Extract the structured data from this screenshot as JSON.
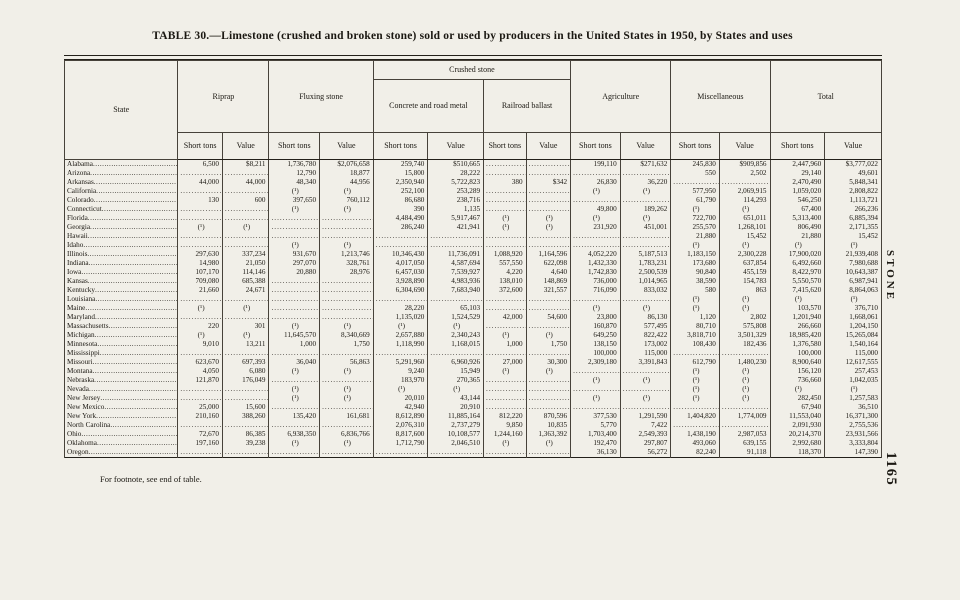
{
  "page": {
    "title": "TABLE 30.—Limestone (crushed and broken stone) sold or used by producers in the United States in 1950, by States and uses",
    "footnote": "For footnote, see end of table.",
    "side_label": "STONE",
    "page_number": "1165",
    "paper_color": "#f1efe8",
    "ink_color": "#1b1812"
  },
  "table": {
    "col_state": "State",
    "groups": {
      "riprap": "Riprap",
      "fluxing": "Fluxing stone",
      "crushed": "Crushed stone",
      "concrete": "Concrete and road metal",
      "railroad": "Railroad ballast",
      "agriculture": "Agriculture",
      "miscellaneous": "Miscellaneous",
      "total": "Total"
    },
    "sub": {
      "tons": "Short tons",
      "value": "Value"
    },
    "rows": [
      {
        "state": "Alabama",
        "cells": [
          "6,500",
          "$8,211",
          "1,736,780",
          "$2,076,658",
          "259,740",
          "$510,665",
          "",
          "",
          "199,110",
          "$271,632",
          "245,830",
          "$909,856",
          "2,447,960",
          "$3,777,022"
        ]
      },
      {
        "state": "Arizona",
        "cells": [
          "",
          "",
          "12,790",
          "18,877",
          "15,800",
          "28,222",
          "",
          "",
          "",
          "",
          "550",
          "2,502",
          "29,140",
          "49,601"
        ]
      },
      {
        "state": "Arkansas",
        "cells": [
          "44,000",
          "44,000",
          "48,340",
          "44,956",
          "2,350,940",
          "5,722,823",
          "380",
          "$342",
          "26,830",
          "36,220",
          "",
          "",
          "2,470,490",
          "5,848,341"
        ]
      },
      {
        "state": "California",
        "cells": [
          "",
          "",
          "(¹)",
          "(¹)",
          "252,100",
          "253,289",
          "",
          "",
          "(¹)",
          "(¹)",
          "577,950",
          "2,069,915",
          "1,059,020",
          "2,808,822"
        ]
      },
      {
        "state": "Colorado",
        "cells": [
          "130",
          "600",
          "397,650",
          "760,112",
          "86,680",
          "238,716",
          "",
          "",
          "",
          "",
          "61,790",
          "114,293",
          "546,250",
          "1,113,721"
        ]
      },
      {
        "state": "Connecticut",
        "cells": [
          "",
          "",
          "(¹)",
          "(¹)",
          "390",
          "1,135",
          "",
          "",
          "49,800",
          "189,262",
          "(¹)",
          "(¹)",
          "67,400",
          "266,236"
        ]
      },
      {
        "state": "Florida",
        "cells": [
          "",
          "",
          "",
          "",
          "4,484,490",
          "5,917,467",
          "(¹)",
          "(¹)",
          "(¹)",
          "(¹)",
          "722,700",
          "651,011",
          "5,313,400",
          "6,885,394"
        ]
      },
      {
        "state": "Georgia",
        "cells": [
          "(¹)",
          "(¹)",
          "",
          "",
          "286,240",
          "421,941",
          "(¹)",
          "(¹)",
          "231,920",
          "451,001",
          "255,570",
          "1,268,101",
          "806,490",
          "2,171,355"
        ]
      },
      {
        "state": "Hawaii",
        "cells": [
          "",
          "",
          "",
          "",
          "",
          "",
          "",
          "",
          "",
          "",
          "21,880",
          "15,452",
          "21,880",
          "15,452"
        ]
      },
      {
        "state": "Idaho",
        "cells": [
          "",
          "",
          "(¹)",
          "(¹)",
          "",
          "",
          "",
          "",
          "",
          "",
          "(¹)",
          "(¹)",
          "(¹)",
          "(¹)"
        ]
      },
      {
        "state": "Illinois",
        "cells": [
          "297,630",
          "337,234",
          "931,670",
          "1,213,746",
          "10,346,430",
          "11,736,091",
          "1,088,920",
          "1,164,596",
          "4,052,220",
          "5,187,513",
          "1,183,150",
          "2,300,228",
          "17,900,020",
          "21,939,408"
        ]
      },
      {
        "state": "Indiana",
        "cells": [
          "14,980",
          "21,050",
          "297,070",
          "328,761",
          "4,017,050",
          "4,587,694",
          "557,550",
          "622,098",
          "1,432,330",
          "1,783,231",
          "173,680",
          "637,854",
          "6,492,660",
          "7,980,688"
        ]
      },
      {
        "state": "Iowa",
        "cells": [
          "107,170",
          "114,146",
          "20,880",
          "28,976",
          "6,457,030",
          "7,539,927",
          "4,220",
          "4,640",
          "1,742,830",
          "2,500,539",
          "90,840",
          "455,159",
          "8,422,970",
          "10,643,387"
        ]
      },
      {
        "state": "Kansas",
        "cells": [
          "709,080",
          "685,388",
          "",
          "",
          "3,928,890",
          "4,983,936",
          "138,010",
          "148,869",
          "736,000",
          "1,014,965",
          "38,590",
          "154,783",
          "5,550,570",
          "6,987,941"
        ]
      },
      {
        "state": "Kentucky",
        "cells": [
          "21,660",
          "24,671",
          "",
          "",
          "6,304,690",
          "7,683,940",
          "372,600",
          "321,557",
          "716,090",
          "833,032",
          "580",
          "863",
          "7,415,620",
          "8,864,063"
        ]
      },
      {
        "state": "Louisiana",
        "cells": [
          "",
          "",
          "",
          "",
          "",
          "",
          "",
          "",
          "",
          "",
          "(¹)",
          "(¹)",
          "(¹)",
          "(¹)"
        ]
      },
      {
        "state": "Maine",
        "cells": [
          "(¹)",
          "(¹)",
          "",
          "",
          "28,220",
          "65,103",
          "",
          "",
          "(¹)",
          "(¹)",
          "(¹)",
          "(¹)",
          "103,570",
          "376,710"
        ]
      },
      {
        "state": "Maryland",
        "cells": [
          "",
          "",
          "",
          "",
          "1,135,020",
          "1,524,529",
          "42,000",
          "54,600",
          "23,800",
          "86,130",
          "1,120",
          "2,802",
          "1,201,940",
          "1,668,061"
        ]
      },
      {
        "state": "Massachusetts",
        "cells": [
          "220",
          "301",
          "(¹)",
          "(¹)",
          "(¹)",
          "(¹)",
          "",
          "",
          "160,870",
          "577,495",
          "80,710",
          "575,808",
          "266,660",
          "1,204,150"
        ]
      },
      {
        "state": "Michigan",
        "cells": [
          "(¹)",
          "(¹)",
          "11,645,570",
          "8,340,669",
          "2,657,880",
          "2,340,243",
          "(¹)",
          "(¹)",
          "649,250",
          "822,422",
          "3,818,710",
          "3,501,329",
          "18,985,420",
          "15,265,084"
        ]
      },
      {
        "state": "Minnesota",
        "cells": [
          "9,010",
          "13,211",
          "1,000",
          "1,750",
          "1,118,990",
          "1,168,015",
          "1,000",
          "1,750",
          "138,150",
          "173,002",
          "108,430",
          "182,436",
          "1,376,580",
          "1,540,164"
        ]
      },
      {
        "state": "Mississippi",
        "cells": [
          "",
          "",
          "",
          "",
          "",
          "",
          "",
          "",
          "100,000",
          "115,000",
          "",
          "",
          "100,000",
          "115,000"
        ]
      },
      {
        "state": "Missouri",
        "cells": [
          "623,670",
          "697,393",
          "36,040",
          "56,863",
          "5,291,960",
          "6,960,926",
          "27,000",
          "30,300",
          "2,309,180",
          "3,391,843",
          "612,790",
          "1,480,230",
          "8,900,640",
          "12,617,555"
        ]
      },
      {
        "state": "Montana",
        "cells": [
          "4,050",
          "6,080",
          "(¹)",
          "(¹)",
          "9,240",
          "15,949",
          "(¹)",
          "(¹)",
          "",
          "",
          "(¹)",
          "(¹)",
          "156,120",
          "257,453"
        ]
      },
      {
        "state": "Nebraska",
        "cells": [
          "121,870",
          "176,049",
          "",
          "",
          "183,970",
          "270,365",
          "",
          "",
          "(¹)",
          "(¹)",
          "(¹)",
          "(¹)",
          "736,660",
          "1,042,035"
        ]
      },
      {
        "state": "Nevada",
        "cells": [
          "",
          "",
          "(¹)",
          "(¹)",
          "(¹)",
          "(¹)",
          "",
          "",
          "",
          "",
          "(¹)",
          "(¹)",
          "(¹)",
          "(¹)"
        ]
      },
      {
        "state": "New Jersey",
        "cells": [
          "",
          "",
          "(¹)",
          "(¹)",
          "20,010",
          "43,144",
          "",
          "",
          "(¹)",
          "(¹)",
          "(¹)",
          "(¹)",
          "282,450",
          "1,257,583"
        ]
      },
      {
        "state": "New Mexico",
        "cells": [
          "25,000",
          "15,600",
          "",
          "",
          "42,940",
          "20,910",
          "",
          "",
          "",
          "",
          "",
          "",
          "67,940",
          "36,510"
        ]
      },
      {
        "state": "New York",
        "cells": [
          "210,160",
          "388,260",
          "135,420",
          "161,681",
          "8,612,890",
          "11,885,164",
          "812,220",
          "870,596",
          "377,530",
          "1,291,590",
          "1,404,820",
          "1,774,009",
          "11,553,040",
          "16,371,300"
        ]
      },
      {
        "state": "North Carolina",
        "cells": [
          "",
          "",
          "",
          "",
          "2,076,310",
          "2,737,279",
          "9,850",
          "10,835",
          "5,770",
          "7,422",
          "",
          "",
          "2,091,930",
          "2,755,536"
        ]
      },
      {
        "state": "Ohio",
        "cells": [
          "72,670",
          "86,385",
          "6,938,350",
          "6,836,766",
          "8,817,600",
          "10,108,577",
          "1,244,160",
          "1,363,392",
          "1,703,400",
          "2,549,393",
          "1,438,190",
          "2,987,053",
          "20,214,370",
          "23,931,566"
        ]
      },
      {
        "state": "Oklahoma",
        "cells": [
          "197,160",
          "39,238",
          "(¹)",
          "(¹)",
          "1,712,790",
          "2,046,510",
          "(¹)",
          "(¹)",
          "192,470",
          "297,807",
          "493,060",
          "639,155",
          "2,992,680",
          "3,333,804"
        ]
      },
      {
        "state": "Oregon",
        "cells": [
          "",
          "",
          "",
          "",
          "",
          "",
          "",
          "",
          "36,130",
          "56,272",
          "82,240",
          "91,118",
          "118,370",
          "147,390"
        ]
      }
    ]
  }
}
